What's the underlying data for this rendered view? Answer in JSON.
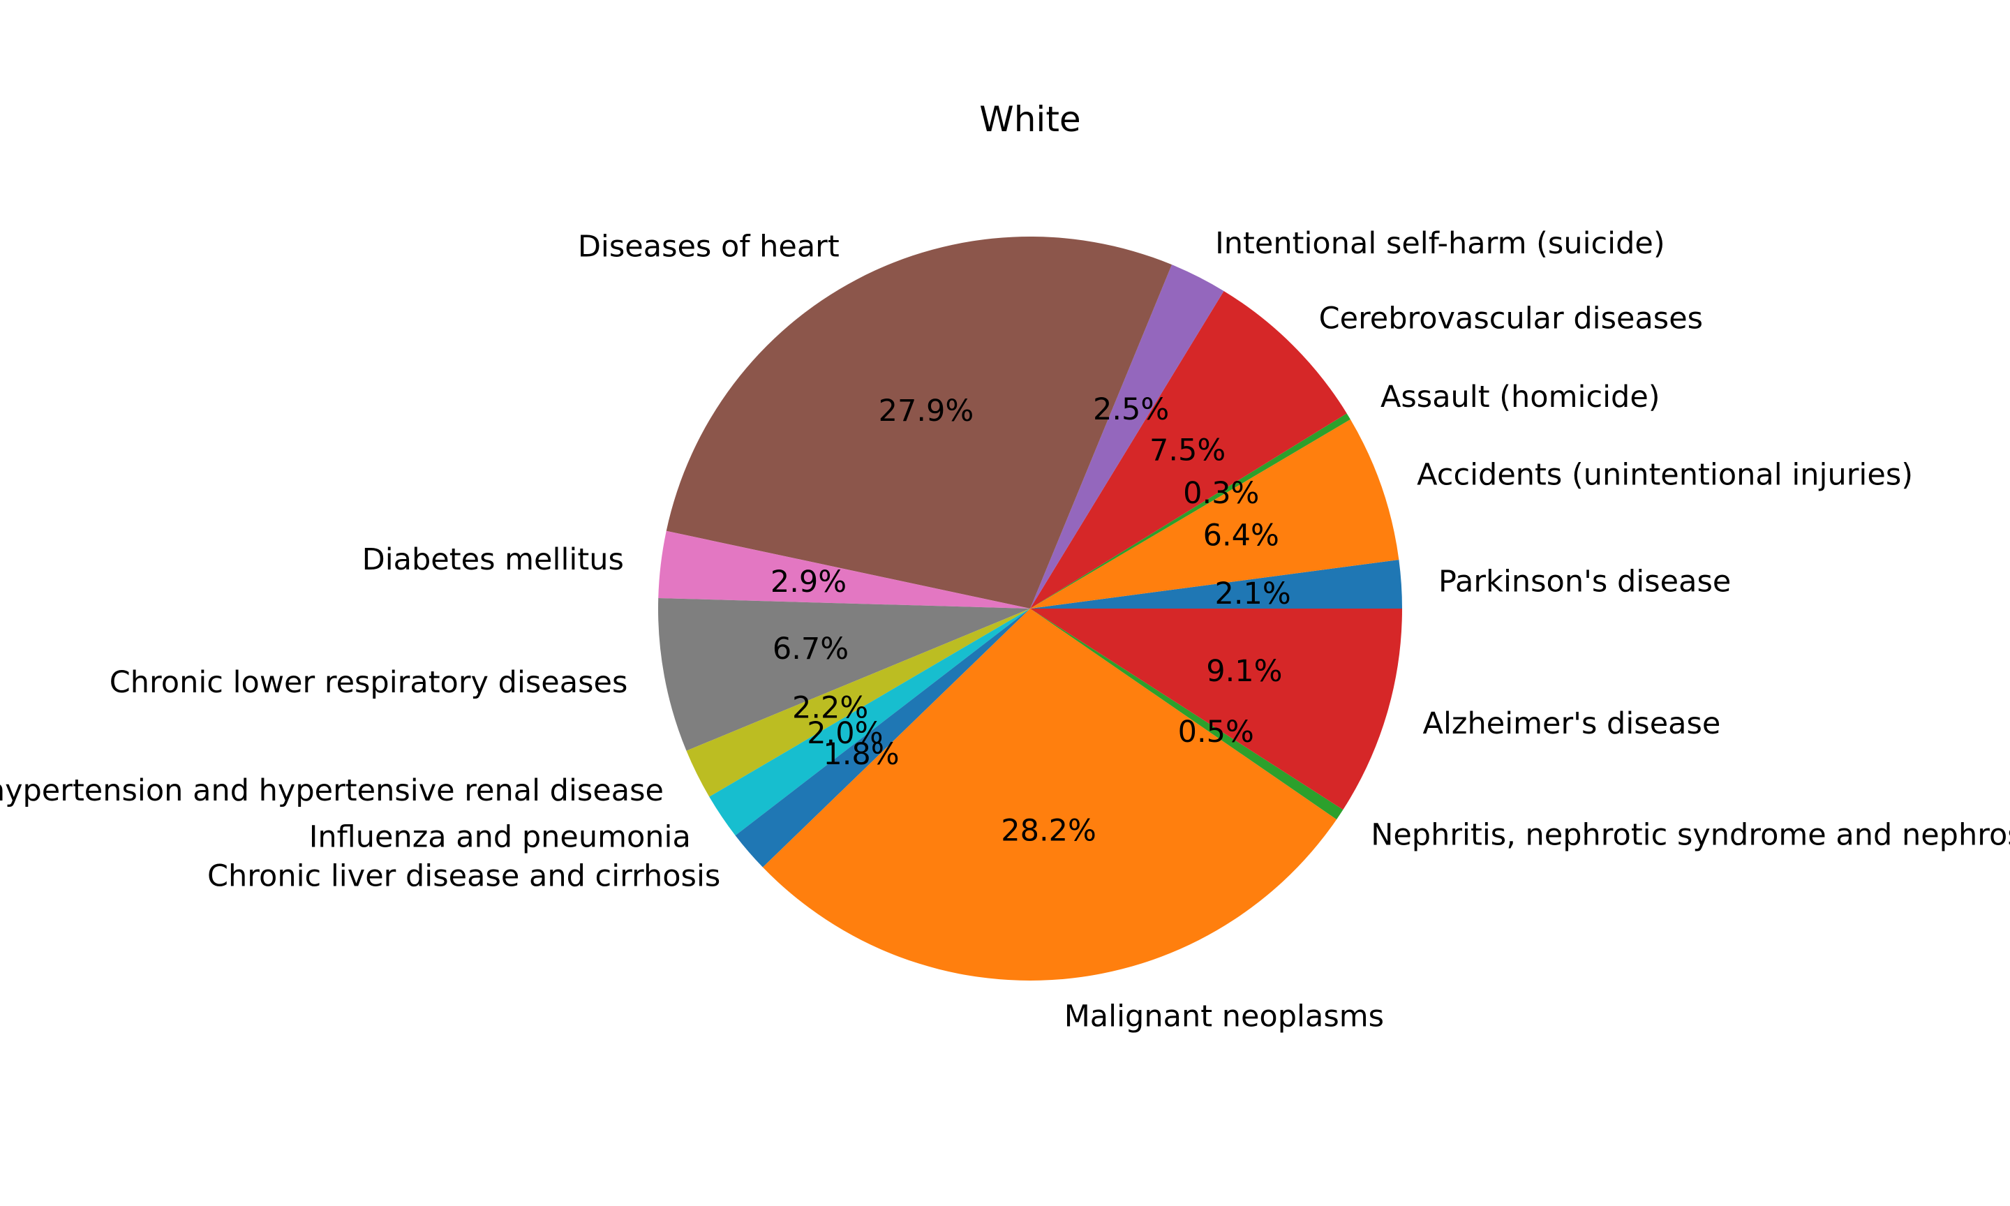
{
  "chart_data": {
    "type": "pie",
    "title": "White",
    "start_angle_deg": 0,
    "direction": "counterclockwise",
    "slices": [
      {
        "label": "Parkinson's disease",
        "value": 2.1,
        "pct_label": "2.1%",
        "color": "#1f77b4"
      },
      {
        "label": "Accidents (unintentional injuries)",
        "value": 6.4,
        "pct_label": "6.4%",
        "color": "#ff7f0e"
      },
      {
        "label": "Assault (homicide)",
        "value": 0.3,
        "pct_label": "0.3%",
        "color": "#2ca02c"
      },
      {
        "label": "Cerebrovascular diseases",
        "value": 7.5,
        "pct_label": "7.5%",
        "color": "#d62728"
      },
      {
        "label": "Intentional self-harm (suicide)",
        "value": 2.5,
        "pct_label": "2.5%",
        "color": "#9467bd"
      },
      {
        "label": "Diseases of heart",
        "value": 27.9,
        "pct_label": "27.9%",
        "color": "#8c564b"
      },
      {
        "label": "Diabetes mellitus",
        "value": 2.9,
        "pct_label": "2.9%",
        "color": "#e377c2"
      },
      {
        "label": "Chronic lower respiratory diseases",
        "value": 6.7,
        "pct_label": "6.7%",
        "color": "#7f7f7f"
      },
      {
        "label": "Essential hypertension and hypertensive renal disease",
        "value": 2.2,
        "pct_label": "2.2%",
        "color": "#bcbd22"
      },
      {
        "label": "Influenza and pneumonia",
        "value": 2.0,
        "pct_label": "2.0%",
        "color": "#17becf"
      },
      {
        "label": "Chronic liver disease and cirrhosis",
        "value": 1.8,
        "pct_label": "1.8%",
        "color": "#1f77b4"
      },
      {
        "label": "Malignant neoplasms",
        "value": 28.2,
        "pct_label": "28.2%",
        "color": "#ff7f0e"
      },
      {
        "label": "Nephritis, nephrotic syndrome and nephrosis",
        "value": 0.5,
        "pct_label": "0.5%",
        "color": "#2ca02c"
      },
      {
        "label": "Alzheimer's disease",
        "value": 9.1,
        "pct_label": "9.1%",
        "color": "#d62728"
      }
    ]
  }
}
